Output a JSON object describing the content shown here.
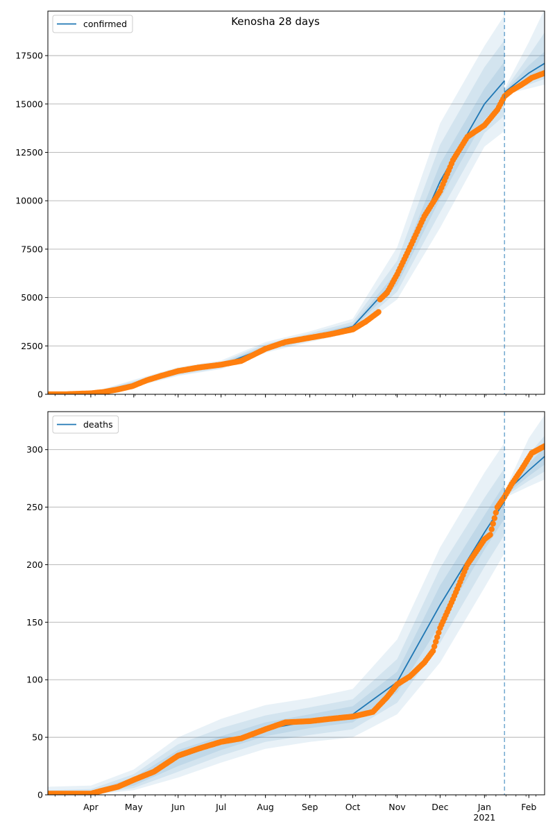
{
  "figure": {
    "title": "Kenosha 28 days",
    "colors": {
      "model_line": "#1f77b4",
      "band": "#1f77b4",
      "observed": "#ff7f0e",
      "forecast_marker": "#1f77b4",
      "grid": "#b0b0b0"
    }
  },
  "chart_data": [
    {
      "type": "line",
      "panel": "confirmed",
      "legend": [
        "confirmed"
      ],
      "legend_position": "upper-left",
      "grid_y": true,
      "xlim": [
        "2020-03-02",
        "2021-02-12"
      ],
      "ylim": [
        0,
        19800
      ],
      "y_ticks": [
        0,
        2500,
        5000,
        7500,
        10000,
        12500,
        15000,
        17500
      ],
      "x_ticks": [
        {
          "date": "2020-04-01",
          "label": "Apr"
        },
        {
          "date": "2020-05-01",
          "label": "May"
        },
        {
          "date": "2020-06-01",
          "label": "Jun"
        },
        {
          "date": "2020-07-01",
          "label": "Jul"
        },
        {
          "date": "2020-08-01",
          "label": "Aug"
        },
        {
          "date": "2020-09-01",
          "label": "Sep"
        },
        {
          "date": "2020-10-01",
          "label": "Oct"
        },
        {
          "date": "2020-11-01",
          "label": "Nov"
        },
        {
          "date": "2020-12-01",
          "label": "Dec"
        },
        {
          "date": "2021-01-01",
          "label": "Jan",
          "sublabel": "2021"
        },
        {
          "date": "2021-02-01",
          "label": "Feb"
        }
      ],
      "forecast_start": "2021-01-15",
      "model_fit": {
        "x": [
          "2020-03-02",
          "2020-04-01",
          "2020-05-01",
          "2020-06-01",
          "2020-07-01",
          "2020-08-01",
          "2020-09-01",
          "2020-10-01",
          "2020-11-01",
          "2020-12-01",
          "2021-01-01",
          "2021-01-15"
        ],
        "y": [
          0,
          50,
          550,
          1150,
          1500,
          2400,
          2950,
          3500,
          6000,
          11000,
          15000,
          16200
        ]
      },
      "model_forecast": {
        "x": [
          "2021-01-15",
          "2021-02-01",
          "2021-02-12"
        ],
        "y": [
          15600,
          16600,
          17100
        ]
      },
      "bands": [
        {
          "x": [
            "2020-03-02",
            "2020-04-01",
            "2020-05-01",
            "2020-06-01",
            "2020-07-01",
            "2020-08-01",
            "2020-09-01",
            "2020-10-01",
            "2020-11-01",
            "2020-12-01",
            "2021-01-01",
            "2021-01-15",
            "2021-01-15",
            "2021-02-01",
            "2021-02-12"
          ],
          "lower": [
            0,
            20,
            380,
            950,
            1300,
            2150,
            2700,
            3200,
            4900,
            8600,
            12800,
            13600,
            15500,
            15800,
            16000
          ],
          "upper": [
            0,
            90,
            750,
            1400,
            1750,
            2700,
            3250,
            3900,
            7600,
            14000,
            18000,
            19600,
            15800,
            18200,
            19900
          ]
        },
        {
          "x": [
            "2020-03-02",
            "2020-04-01",
            "2020-05-01",
            "2020-06-01",
            "2020-07-01",
            "2020-08-01",
            "2020-09-01",
            "2020-10-01",
            "2020-11-01",
            "2020-12-01",
            "2021-01-01",
            "2021-01-15",
            "2021-01-15",
            "2021-02-01",
            "2021-02-12"
          ],
          "lower": [
            0,
            30,
            430,
            1000,
            1350,
            2220,
            2780,
            3300,
            5300,
            9400,
            13500,
            14400,
            15550,
            16000,
            16300
          ],
          "upper": [
            0,
            75,
            680,
            1320,
            1660,
            2600,
            3150,
            3750,
            6900,
            12900,
            16900,
            18300,
            15700,
            17500,
            18700
          ]
        },
        {
          "x": [
            "2020-03-02",
            "2020-04-01",
            "2020-05-01",
            "2020-06-01",
            "2020-07-01",
            "2020-08-01",
            "2020-09-01",
            "2020-10-01",
            "2020-11-01",
            "2020-12-01",
            "2021-01-01",
            "2021-01-15",
            "2021-01-15",
            "2021-02-01",
            "2021-02-12"
          ],
          "lower": [
            0,
            38,
            480,
            1060,
            1410,
            2290,
            2850,
            3390,
            5650,
            10100,
            14200,
            15200,
            15580,
            16200,
            16600
          ],
          "upper": [
            0,
            62,
            620,
            1240,
            1590,
            2510,
            3050,
            3610,
            6350,
            11900,
            15800,
            17200,
            15650,
            17000,
            17700
          ]
        }
      ],
      "observed": {
        "x": [
          "2020-03-02",
          "2020-03-15",
          "2020-04-01",
          "2020-04-10",
          "2020-04-20",
          "2020-04-30",
          "2020-05-10",
          "2020-05-20",
          "2020-06-01",
          "2020-06-15",
          "2020-07-01",
          "2020-07-15",
          "2020-08-01",
          "2020-08-15",
          "2020-09-01",
          "2020-09-15",
          "2020-10-01",
          "2020-10-10",
          "2020-10-19",
          "2020-10-20",
          "2020-10-25",
          "2020-11-01",
          "2020-11-10",
          "2020-11-20",
          "2020-12-01",
          "2020-12-10",
          "2020-12-20",
          "2021-01-01",
          "2021-01-10",
          "2021-01-15",
          "2021-01-20",
          "2021-01-27",
          "2021-02-03",
          "2021-02-12"
        ],
        "y": [
          0,
          5,
          50,
          120,
          250,
          420,
          720,
          950,
          1200,
          1380,
          1530,
          1720,
          2350,
          2700,
          2920,
          3100,
          3350,
          3750,
          4250,
          4900,
          5250,
          6200,
          7600,
          9200,
          10500,
          12100,
          13300,
          13900,
          14700,
          15400,
          15700,
          16000,
          16350,
          16600
        ]
      }
    },
    {
      "type": "line",
      "panel": "deaths",
      "legend": [
        "deaths"
      ],
      "legend_position": "upper-left",
      "grid_y": true,
      "xlim": [
        "2020-03-02",
        "2021-02-12"
      ],
      "ylim": [
        0,
        333
      ],
      "y_ticks": [
        0,
        50,
        100,
        150,
        200,
        250,
        300
      ],
      "x_ticks": [
        {
          "date": "2020-04-01",
          "label": "Apr"
        },
        {
          "date": "2020-05-01",
          "label": "May"
        },
        {
          "date": "2020-06-01",
          "label": "Jun"
        },
        {
          "date": "2020-07-01",
          "label": "Jul"
        },
        {
          "date": "2020-08-01",
          "label": "Aug"
        },
        {
          "date": "2020-09-01",
          "label": "Sep"
        },
        {
          "date": "2020-10-01",
          "label": "Oct"
        },
        {
          "date": "2020-11-01",
          "label": "Nov"
        },
        {
          "date": "2020-12-01",
          "label": "Dec"
        },
        {
          "date": "2021-01-01",
          "label": "Jan",
          "sublabel": "2021"
        },
        {
          "date": "2021-02-01",
          "label": "Feb"
        }
      ],
      "forecast_start": "2021-01-15",
      "model_fit": {
        "x": [
          "2020-03-02",
          "2020-04-01",
          "2020-05-01",
          "2020-06-01",
          "2020-07-01",
          "2020-08-01",
          "2020-09-01",
          "2020-10-01",
          "2020-11-01",
          "2020-12-01",
          "2021-01-01",
          "2021-01-15"
        ],
        "y": [
          0,
          1,
          12,
          32,
          45,
          57,
          64,
          70,
          98,
          165,
          228,
          255
        ]
      },
      "model_forecast": {
        "x": [
          "2021-01-15",
          "2021-02-01",
          "2021-02-12"
        ],
        "y": [
          262,
          282,
          294
        ]
      },
      "bands": [
        {
          "x": [
            "2020-03-02",
            "2020-04-01",
            "2020-05-01",
            "2020-06-01",
            "2020-07-01",
            "2020-08-01",
            "2020-09-01",
            "2020-10-01",
            "2020-11-01",
            "2020-12-01",
            "2021-01-01",
            "2021-01-15",
            "2021-01-15",
            "2021-02-01",
            "2021-02-12"
          ],
          "lower": [
            0,
            0,
            4,
            15,
            28,
            40,
            46,
            50,
            70,
            115,
            180,
            210,
            258,
            268,
            274
          ],
          "upper": [
            7,
            8,
            22,
            50,
            66,
            78,
            84,
            92,
            135,
            215,
            280,
            306,
            264,
            310,
            330
          ]
        },
        {
          "x": [
            "2020-03-02",
            "2020-04-01",
            "2020-05-01",
            "2020-06-01",
            "2020-07-01",
            "2020-08-01",
            "2020-09-01",
            "2020-10-01",
            "2020-11-01",
            "2020-12-01",
            "2021-01-01",
            "2021-01-15",
            "2021-01-15",
            "2021-02-01",
            "2021-02-12"
          ],
          "lower": [
            0,
            0,
            6,
            20,
            34,
            46,
            52,
            57,
            80,
            132,
            198,
            226,
            259,
            273,
            281
          ],
          "upper": [
            4,
            5,
            18,
            44,
            58,
            69,
            76,
            83,
            118,
            197,
            258,
            284,
            263,
            296,
            312
          ]
        },
        {
          "x": [
            "2020-03-02",
            "2020-04-01",
            "2020-05-01",
            "2020-06-01",
            "2020-07-01",
            "2020-08-01",
            "2020-09-01",
            "2020-10-01",
            "2020-11-01",
            "2020-12-01",
            "2021-01-01",
            "2021-01-15",
            "2021-01-15",
            "2021-02-01",
            "2021-02-12"
          ],
          "lower": [
            0,
            0,
            8,
            25,
            39,
            51,
            58,
            63,
            89,
            148,
            213,
            240,
            260,
            277,
            287
          ],
          "upper": [
            2,
            3,
            15,
            39,
            51,
            63,
            70,
            77,
            107,
            182,
            243,
            270,
            262,
            288,
            302
          ]
        }
      ],
      "observed": {
        "x": [
          "2020-03-02",
          "2020-04-01",
          "2020-04-10",
          "2020-04-20",
          "2020-05-01",
          "2020-05-15",
          "2020-06-01",
          "2020-06-15",
          "2020-07-01",
          "2020-07-15",
          "2020-08-01",
          "2020-08-15",
          "2020-09-01",
          "2020-09-15",
          "2020-10-01",
          "2020-10-15",
          "2020-10-25",
          "2020-11-01",
          "2020-11-10",
          "2020-11-20",
          "2020-11-26",
          "2020-12-01",
          "2020-12-10",
          "2020-12-20",
          "2021-01-01",
          "2021-01-05",
          "2021-01-10",
          "2021-01-15",
          "2021-01-20",
          "2021-01-27",
          "2021-02-03",
          "2021-02-12"
        ],
        "y": [
          1,
          1,
          4,
          7,
          13,
          20,
          34,
          40,
          46,
          49,
          57,
          63,
          64,
          66,
          68,
          72,
          85,
          96,
          103,
          115,
          125,
          145,
          170,
          200,
          222,
          226,
          250,
          259,
          270,
          283,
          297,
          303
        ]
      }
    }
  ]
}
